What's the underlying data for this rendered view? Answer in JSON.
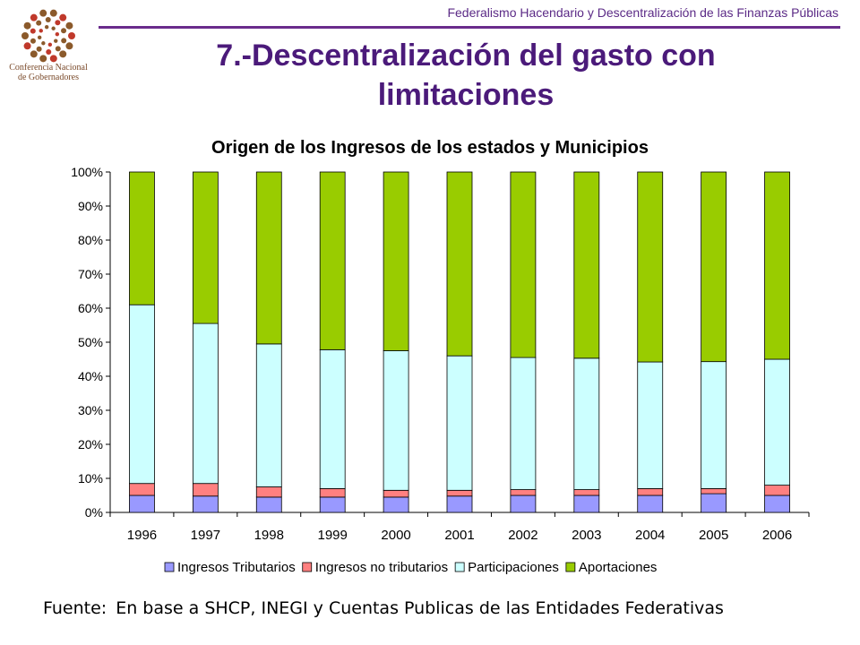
{
  "header": {
    "text": "Federalismo Hacendario y Descentralización de las Finanzas Públicas"
  },
  "logo": {
    "line1": "Conferencia Nacional",
    "line2": "de Gobernadores"
  },
  "slide": {
    "title_line1": "7.-Descentralización del gasto con",
    "title_line2": "limitaciones"
  },
  "footer": {
    "label": "Fuente:",
    "text": "En base a SHCP, INEGI y Cuentas Publicas de las Entidades Federativas"
  },
  "colors": {
    "tributarios": "#9999ff",
    "no_tributarios": "#ff8080",
    "participaciones": "#ccffff",
    "aportaciones": "#99cc00"
  },
  "chart_data": {
    "type": "bar",
    "stacked": true,
    "percent": true,
    "title": "Origen de los Ingresos de los estados y Municipios",
    "categories": [
      "1996",
      "1997",
      "1998",
      "1999",
      "2000",
      "2001",
      "2002",
      "2003",
      "2004",
      "2005",
      "2006"
    ],
    "ylim": [
      0,
      100
    ],
    "yticks": [
      "0%",
      "10%",
      "20%",
      "30%",
      "40%",
      "50%",
      "60%",
      "70%",
      "80%",
      "90%",
      "100%"
    ],
    "legend_position": "bottom",
    "series": [
      {
        "name": "Ingresos Tributarios",
        "values": [
          5.0,
          4.8,
          4.5,
          4.5,
          4.5,
          4.8,
          5.0,
          5.0,
          5.0,
          5.5,
          5.0
        ]
      },
      {
        "name": "Ingresos no tributarios",
        "values": [
          3.5,
          3.7,
          3.0,
          2.5,
          2.0,
          1.7,
          1.7,
          1.7,
          2.0,
          1.5,
          3.0
        ]
      },
      {
        "name": "Participaciones",
        "values": [
          52.5,
          47.0,
          42.0,
          40.8,
          41.0,
          39.5,
          38.8,
          38.6,
          37.2,
          37.3,
          37.0
        ]
      },
      {
        "name": "Aportaciones",
        "values": [
          39.0,
          44.5,
          50.5,
          52.2,
          52.5,
          54.0,
          54.5,
          54.7,
          55.8,
          55.7,
          55.0
        ]
      }
    ]
  }
}
